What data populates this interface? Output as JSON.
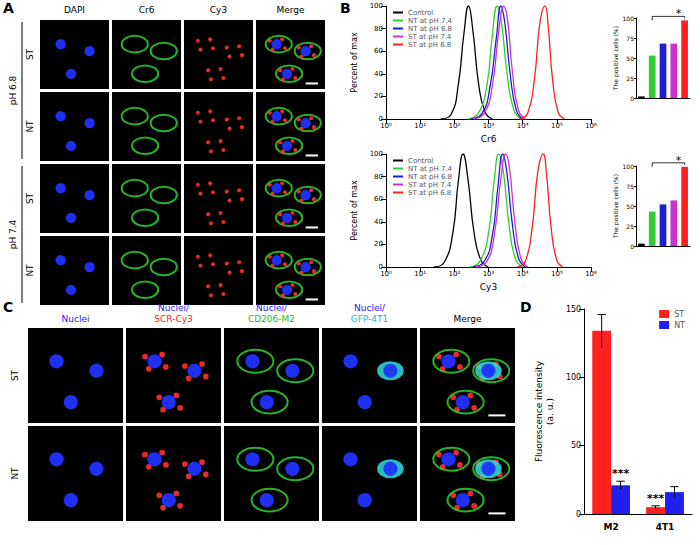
{
  "panels": {
    "A": {
      "label": "A",
      "columns": [
        "DAPI",
        "Cr6",
        "Cy3",
        "Merge"
      ],
      "groups": [
        {
          "label": "pH 6.8",
          "rows": [
            "ST",
            "NT"
          ]
        },
        {
          "label": "pH 7.4",
          "rows": [
            "ST",
            "NT"
          ]
        }
      ]
    },
    "B": {
      "label": "B"
    },
    "C": {
      "label": "C",
      "rows": [
        "ST",
        "NT"
      ],
      "columns": [
        {
          "lines": [
            "Nuclei"
          ],
          "colors": [
            "#1a1aff"
          ]
        },
        {
          "lines": [
            "Nuclei/",
            "SCR-Cy3"
          ],
          "colors": [
            "#1a1aff",
            "#ff1a1a"
          ]
        },
        {
          "lines": [
            "Nuclei/",
            "CD206-M2"
          ],
          "colors": [
            "#1a1aff",
            "#22bb22"
          ]
        },
        {
          "lines": [
            "Nuclei/",
            "GFP-4T1"
          ],
          "colors": [
            "#1a1aff",
            "#22bbcc"
          ]
        },
        {
          "lines": [
            "Merge"
          ],
          "colors": [
            "#000000"
          ]
        }
      ]
    },
    "D": {
      "label": "D"
    }
  },
  "chart_data": [
    {
      "type": "line",
      "x_label": "Cr6",
      "y_label": "Percent of max",
      "log": "x",
      "legend": "upper left",
      "xlim": [
        1,
        1000000
      ],
      "xticks": [
        {
          "value": 1,
          "label": "10⁰"
        },
        {
          "value": 10,
          "label": "10¹"
        },
        {
          "value": 100,
          "label": "10²"
        },
        {
          "value": 1000,
          "label": "10³"
        },
        {
          "value": 10000,
          "label": "10⁴"
        },
        {
          "value": 100000,
          "label": "10⁵"
        },
        {
          "value": 1000000,
          "label": "10⁶"
        }
      ],
      "ylim": [
        0,
        100
      ],
      "yticks": [
        0,
        20,
        40,
        60,
        80,
        100
      ],
      "series": [
        {
          "name": "Control",
          "color": "#000000",
          "x": [
            40,
            80,
            130,
            190,
            260,
            350,
            520,
            800,
            1300
          ],
          "values": [
            0,
            4,
            30,
            75,
            100,
            78,
            30,
            6,
            0
          ]
        },
        {
          "name": "NT at pH 7.4",
          "color": "#33cc33",
          "x": [
            250,
            500,
            900,
            1300,
            1800,
            2400,
            3500,
            5500,
            9000
          ],
          "values": [
            0,
            5,
            30,
            75,
            100,
            85,
            40,
            8,
            0
          ]
        },
        {
          "name": "NT at pH 6.8",
          "color": "#1f1fcc",
          "x": [
            300,
            650,
            1100,
            1700,
            2300,
            3000,
            4300,
            6500,
            10000
          ],
          "values": [
            0,
            5,
            28,
            72,
            100,
            85,
            40,
            8,
            0
          ]
        },
        {
          "name": "ST at pH 7.4",
          "color": "#cc33cc",
          "x": [
            350,
            750,
            1300,
            2000,
            2800,
            3600,
            5000,
            7500,
            12000
          ],
          "values": [
            0,
            5,
            30,
            78,
            100,
            88,
            42,
            8,
            0
          ]
        },
        {
          "name": "ST at pH 6.8",
          "color": "#ff2020",
          "x": [
            8000,
            14000,
            22000,
            32000,
            45000,
            56000,
            75000,
            110000,
            170000
          ],
          "values": [
            0,
            5,
            35,
            85,
            100,
            82,
            35,
            6,
            0
          ]
        }
      ]
    },
    {
      "type": "bar",
      "y_label": "The positive cells (%)",
      "tick_labels": "y",
      "values": [
        2,
        53,
        68,
        68,
        97
      ],
      "colors": [
        "#000000",
        "#33cc33",
        "#1f1fcc",
        "#cc33cc",
        "#ff2020"
      ],
      "ylim": [
        0,
        100
      ],
      "yticks": [
        0,
        25,
        50,
        75,
        100
      ],
      "annotations": [
        {
          "text": "*"
        }
      ]
    },
    {
      "type": "line",
      "x_label": "Cy3",
      "y_label": "Percent of max",
      "log": "x",
      "legend": "upper left",
      "xlim": [
        1,
        1000000
      ],
      "xticks": [
        {
          "value": 1,
          "label": "10⁰"
        },
        {
          "value": 10,
          "label": "10¹"
        },
        {
          "value": 100,
          "label": "10²"
        },
        {
          "value": 1000,
          "label": "10³"
        },
        {
          "value": 10000,
          "label": "10⁴"
        },
        {
          "value": 100000,
          "label": "10⁵"
        },
        {
          "value": 1000000,
          "label": "10⁶"
        }
      ],
      "ylim": [
        0,
        100
      ],
      "yticks": [
        0,
        20,
        40,
        60,
        80,
        100
      ],
      "series": [
        {
          "name": "Control",
          "color": "#000000",
          "x": [
            25,
            50,
            90,
            130,
            180,
            250,
            380,
            600,
            1000
          ],
          "values": [
            0,
            4,
            30,
            75,
            100,
            78,
            30,
            6,
            0
          ]
        },
        {
          "name": "NT at pH 7.4",
          "color": "#33cc33",
          "x": [
            280,
            560,
            1000,
            1450,
            2000,
            2700,
            3900,
            6000,
            10000
          ],
          "values": [
            0,
            5,
            30,
            75,
            100,
            85,
            40,
            8,
            0
          ]
        },
        {
          "name": "NT at pH 6.8",
          "color": "#1f1fcc",
          "x": [
            350,
            750,
            1300,
            1900,
            2600,
            3400,
            4900,
            7500,
            12000
          ],
          "values": [
            0,
            5,
            28,
            72,
            100,
            85,
            40,
            8,
            0
          ]
        },
        {
          "name": "ST at pH 7.4",
          "color": "#cc33cc",
          "x": [
            420,
            900,
            1500,
            2300,
            3200,
            4100,
            5800,
            8800,
            14000
          ],
          "values": [
            0,
            5,
            30,
            78,
            100,
            88,
            42,
            8,
            0
          ]
        },
        {
          "name": "ST at pH 6.8",
          "color": "#ff2020",
          "x": [
            7000,
            12000,
            19000,
            28000,
            40000,
            50000,
            68000,
            100000,
            150000
          ],
          "values": [
            0,
            5,
            35,
            85,
            100,
            82,
            35,
            6,
            0
          ]
        }
      ]
    },
    {
      "type": "bar",
      "y_label": "The positive cells (%)",
      "tick_labels": "y",
      "values": [
        3,
        43,
        52,
        57,
        99
      ],
      "colors": [
        "#000000",
        "#33cc33",
        "#1f1fcc",
        "#cc33cc",
        "#ff2020"
      ],
      "ylim": [
        0,
        100
      ],
      "yticks": [
        0,
        25,
        50,
        75,
        100
      ],
      "annotations": [
        {
          "text": "*"
        }
      ]
    },
    {
      "type": "bar",
      "y_label": "Fluorescence intensity\n(a. u.)",
      "legend": "upper right",
      "categories": [
        "M2",
        "4T1"
      ],
      "ylim": [
        0,
        150
      ],
      "yticks": [
        0,
        50,
        100,
        150
      ],
      "series": [
        {
          "name": "ST",
          "color": "#ff2020",
          "values": [
            134,
            5
          ],
          "errors": [
            12,
            1
          ]
        },
        {
          "name": "NT",
          "color": "#1f1fee",
          "values": [
            21,
            16
          ],
          "errors": [
            3,
            4
          ]
        }
      ],
      "annotations": [
        {
          "text": "***",
          "series": "NT",
          "category": "M2"
        },
        {
          "text": "***",
          "series": "ST",
          "category": "4T1"
        }
      ]
    }
  ]
}
